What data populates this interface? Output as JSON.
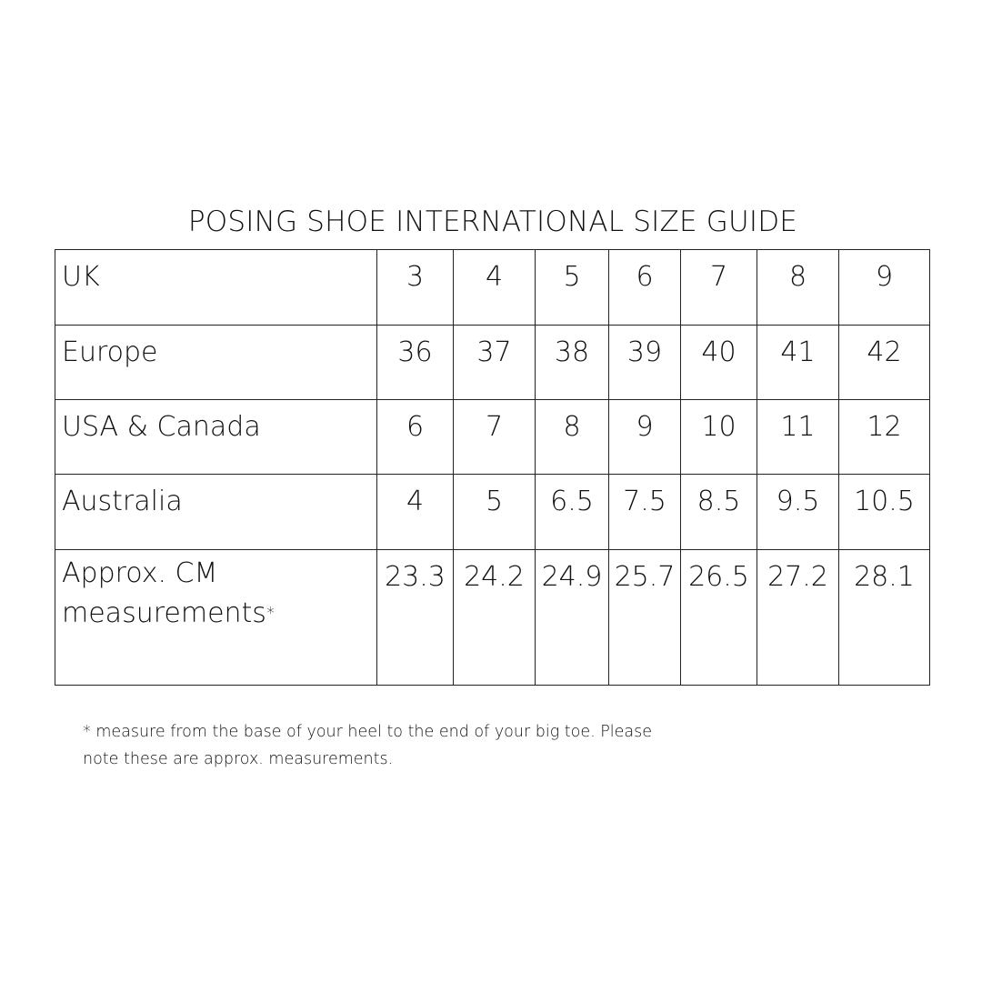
{
  "title": "POSING SHOE INTERNATIONAL SIZE GUIDE",
  "table": {
    "rows": [
      {
        "label": "UK",
        "values": [
          "3",
          "4",
          "5",
          "6",
          "7",
          "8",
          "9"
        ]
      },
      {
        "label": "Europe",
        "values": [
          "36",
          "37",
          "38",
          "39",
          "40",
          "41",
          "42"
        ]
      },
      {
        "label": "USA & Canada",
        "values": [
          "6",
          "7",
          "8",
          "9",
          "10",
          "11",
          "12"
        ]
      },
      {
        "label": "Australia",
        "values": [
          "4",
          "5",
          "6.5",
          "7.5",
          "8.5",
          "9.5",
          "10.5"
        ]
      },
      {
        "label_line1": "Approx. CM",
        "label_line2": "measurements",
        "label_marker": "*",
        "values": [
          "23.3",
          "24.2",
          "24.9",
          "25.7",
          "26.5",
          "27.2",
          "28.1"
        ]
      }
    ]
  },
  "footnote": {
    "line1": "* measure from the base of your heel to the end of your big toe. Please",
    "line2": "note these are approx. measurements."
  }
}
